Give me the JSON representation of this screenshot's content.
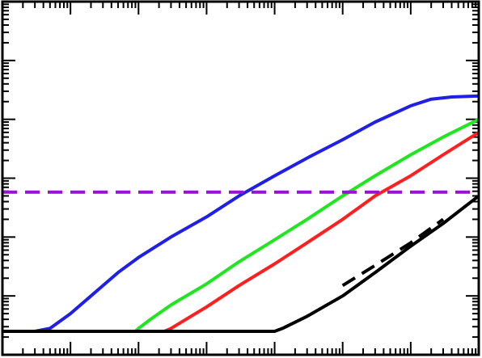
{
  "chart_data": {
    "type": "line",
    "title": "",
    "xlabel": "",
    "ylabel": "",
    "xscale": "log",
    "yscale": "log",
    "xlim": [
      0.1,
      1000000
    ],
    "ylim": [
      0.001,
      1000
    ],
    "grid": false,
    "tick_labels_shown": false,
    "series": [
      {
        "color": "#1f1fe6",
        "style": "solid",
        "points": [
          [
            0.1,
            0.0025
          ],
          [
            0.3,
            0.0025
          ],
          [
            0.5,
            0.0028
          ],
          [
            1,
            0.005
          ],
          [
            2,
            0.01
          ],
          [
            5,
            0.025
          ],
          [
            10,
            0.045
          ],
          [
            30,
            0.1
          ],
          [
            100,
            0.22
          ],
          [
            300,
            0.5
          ],
          [
            1000,
            1.1
          ],
          [
            3000,
            2.2
          ],
          [
            10000,
            4.5
          ],
          [
            30000,
            9
          ],
          [
            100000,
            17
          ],
          [
            200000,
            22
          ],
          [
            400000,
            24
          ],
          [
            1000000,
            25
          ]
        ]
      },
      {
        "color": "#1fe61f",
        "style": "solid",
        "points": [
          [
            0.1,
            0.0025
          ],
          [
            9,
            0.0025
          ],
          [
            10,
            0.0028
          ],
          [
            15,
            0.004
          ],
          [
            30,
            0.007
          ],
          [
            100,
            0.016
          ],
          [
            300,
            0.038
          ],
          [
            1000,
            0.09
          ],
          [
            3000,
            0.2
          ],
          [
            10000,
            0.5
          ],
          [
            30000,
            1.1
          ],
          [
            100000,
            2.5
          ],
          [
            300000,
            5
          ],
          [
            1000000,
            10
          ]
        ]
      },
      {
        "color": "#ff1f1f",
        "style": "solid",
        "points": [
          [
            0.1,
            0.0025
          ],
          [
            24,
            0.0025
          ],
          [
            30,
            0.0028
          ],
          [
            50,
            0.004
          ],
          [
            100,
            0.0065
          ],
          [
            300,
            0.015
          ],
          [
            1000,
            0.035
          ],
          [
            3000,
            0.08
          ],
          [
            10000,
            0.2
          ],
          [
            30000,
            0.5
          ],
          [
            100000,
            1.1
          ],
          [
            300000,
            2.5
          ],
          [
            1000000,
            6
          ]
        ]
      },
      {
        "color": "#000000",
        "style": "solid",
        "points": [
          [
            0.1,
            0.0025
          ],
          [
            1000,
            0.0025
          ],
          [
            1300,
            0.0028
          ],
          [
            3000,
            0.0045
          ],
          [
            10000,
            0.01
          ],
          [
            30000,
            0.025
          ],
          [
            100000,
            0.07
          ],
          [
            300000,
            0.17
          ],
          [
            1000000,
            0.5
          ]
        ]
      },
      {
        "color": "#000000",
        "style": "dashed",
        "points": [
          [
            10000,
            0.015
          ],
          [
            30000,
            0.033
          ],
          [
            100000,
            0.08
          ],
          [
            300000,
            0.2
          ]
        ]
      },
      {
        "color": "#9b10d6",
        "style": "dashed",
        "points": [
          [
            0.1,
            0.58
          ],
          [
            1000000,
            0.58
          ]
        ]
      }
    ]
  }
}
